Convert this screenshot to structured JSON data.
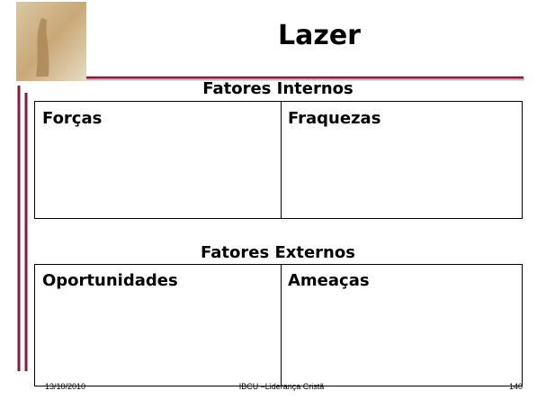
{
  "header": {
    "title": "Lazer"
  },
  "sections": [
    {
      "title": "Fatores Internos",
      "cells": [
        "Forças",
        "Fraquezas"
      ]
    },
    {
      "title": "Fatores Externos",
      "cells": [
        "Oportunidades",
        "Ameaças"
      ]
    }
  ],
  "footer": {
    "date": "13/10/2010",
    "center": "IBCU –Liderança Cristã",
    "page": 140
  }
}
